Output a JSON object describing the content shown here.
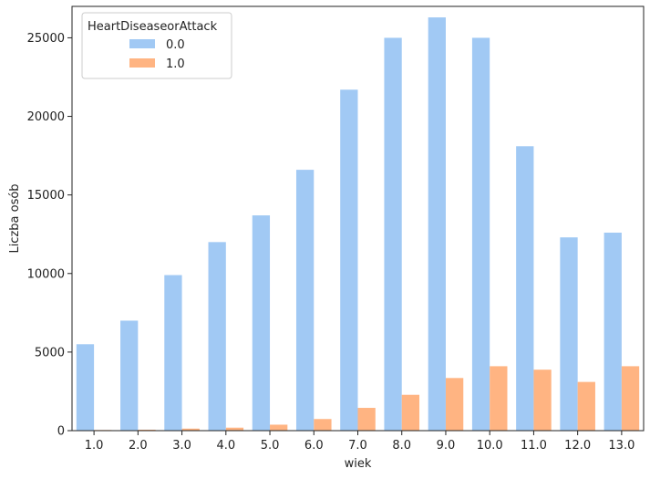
{
  "chart_data": {
    "type": "bar",
    "title": "",
    "xlabel": "wiek",
    "ylabel": "Liczba osób",
    "categories": [
      "1.0",
      "2.0",
      "3.0",
      "4.0",
      "5.0",
      "6.0",
      "7.0",
      "8.0",
      "9.0",
      "10.0",
      "11.0",
      "12.0",
      "13.0"
    ],
    "ylim": [
      0,
      27000
    ],
    "yticks": [
      0,
      5000,
      10000,
      15000,
      20000,
      25000
    ],
    "grid": false,
    "legend": {
      "title": "HeartDiseaseorAttack",
      "placement": "top-left"
    },
    "series": [
      {
        "name": "0.0",
        "color": "#a1c9f4",
        "values": [
          5500,
          7000,
          9900,
          12000,
          13700,
          16600,
          21700,
          25000,
          26300,
          25000,
          18100,
          12300,
          12600
        ]
      },
      {
        "name": "1.0",
        "color": "#ffb482",
        "values": [
          40,
          60,
          130,
          190,
          380,
          740,
          1450,
          2280,
          3350,
          4100,
          3880,
          3100,
          4100
        ]
      }
    ]
  }
}
